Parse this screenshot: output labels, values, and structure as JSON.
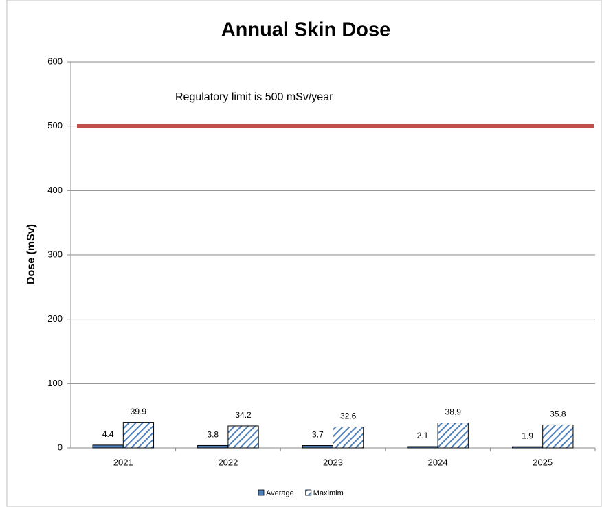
{
  "chart_data": {
    "type": "bar",
    "title": "Annual Skin Dose",
    "y_label": "Dose (mSv)",
    "categories": [
      "2021",
      "2022",
      "2023",
      "2024",
      "2025"
    ],
    "series": [
      {
        "name": "Average",
        "color": "#4f81bd",
        "values": [
          4.4,
          3.8,
          3.7,
          2.1,
          1.9
        ]
      },
      {
        "name": "Maximim",
        "color": "#4f81bd",
        "pattern": "hatch",
        "values": [
          39.9,
          34.2,
          32.6,
          38.9,
          35.8
        ]
      }
    ],
    "ylim": [
      0,
      600
    ],
    "yticks": [
      0,
      100,
      200,
      300,
      400,
      500,
      600
    ],
    "grid": true,
    "reference_line": {
      "value": 500,
      "color": "#c0504d"
    },
    "annotation": "Regulatory limit is 500 mSv/year",
    "legend": "bottom"
  }
}
